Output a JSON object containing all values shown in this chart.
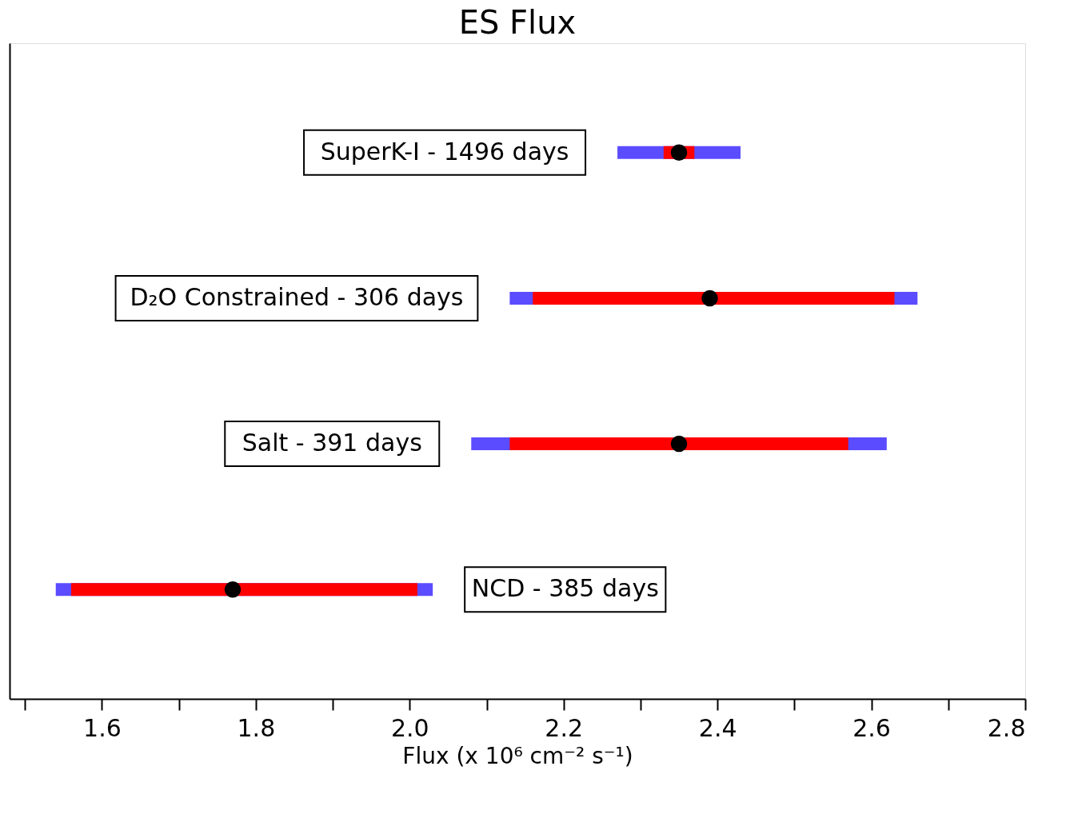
{
  "chart_data": {
    "type": "bar",
    "orientation": "horizontal",
    "title": "ES Flux",
    "xlabel": "Flux (x 10⁶ cm⁻² s⁻¹)",
    "categories": [
      "SuperK-I - 1496 days",
      "D₂O Constrained - 306 days",
      "Salt - 391 days",
      "NCD - 385 days"
    ],
    "series": [
      {
        "color": "#5b4cff",
        "base": [
          2.27,
          2.13,
          2.08,
          1.54
        ],
        "values": [
          0.16,
          0.53,
          0.54,
          0.49
        ]
      },
      {
        "color": "#ff0000",
        "base": [
          2.33,
          2.16,
          2.13,
          1.56
        ],
        "values": [
          0.04,
          0.47,
          0.44,
          0.45
        ]
      },
      {
        "type": "scatter",
        "color": "#000000",
        "marker": "circle",
        "values": [
          2.35,
          2.39,
          2.35,
          1.77
        ]
      }
    ],
    "xlim": [
      1.48,
      2.8
    ],
    "xticks": [
      {
        "value": 1.5,
        "label": null
      },
      1.6,
      {
        "value": 1.7,
        "label": null
      },
      1.8,
      {
        "value": 1.9,
        "label": null
      },
      {
        "value": 2.0,
        "label": "2.0"
      },
      {
        "value": 2.1,
        "label": null
      },
      2.2,
      {
        "value": 2.3,
        "label": null
      },
      2.4,
      {
        "value": 2.5,
        "label": null
      },
      2.6,
      {
        "value": 2.7,
        "label": null
      },
      2.8
    ],
    "tick_labels": "x",
    "grid": false
  }
}
